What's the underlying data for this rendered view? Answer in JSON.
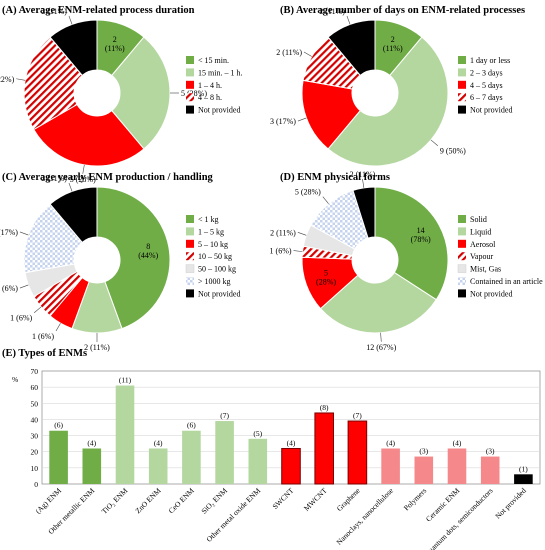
{
  "chart_data": [
    {
      "id": "A",
      "type": "pie",
      "title": "(A) Average ENM-related process duration",
      "categories": [
        "< 15 min.",
        "15 min. – 1 h.",
        "1 – 4 h.",
        "4 – 8 h.",
        "Not provided"
      ],
      "values": [
        2,
        5,
        5,
        4,
        2
      ],
      "labels": [
        "2 (11%)",
        "5 (28%)",
        "5 (28%)",
        "4 (22%)",
        "2 (11%)"
      ],
      "colors": [
        "#70ad47",
        "#b4d7a0",
        "#ff0000",
        "hatch-red",
        "#000000"
      ],
      "legend_position": "right"
    },
    {
      "id": "B",
      "type": "pie",
      "title": "(B) Average number of days on ENM-related processes",
      "categories": [
        "1 day or less",
        "2 – 3 days",
        "4 – 5 days",
        "6 – 7 days",
        "Not provided"
      ],
      "values": [
        2,
        9,
        3,
        2,
        2
      ],
      "labels": [
        "2 (11%)",
        "9 (50%)",
        "3 (17%)",
        "2 (11%)",
        "2 (11%)"
      ],
      "colors": [
        "#70ad47",
        "#b4d7a0",
        "#ff0000",
        "hatch-red",
        "#000000"
      ],
      "legend_position": "right"
    },
    {
      "id": "C",
      "type": "pie",
      "title": "(C) Average yearly ENM production / handling",
      "categories": [
        "< 1 kg",
        "1 – 5 kg",
        "5 – 10 kg",
        "10 – 50 kg",
        "50 – 100 kg",
        "> 1000 kg",
        "Not provided"
      ],
      "values": [
        8,
        2,
        1,
        1,
        1,
        3,
        2
      ],
      "labels": [
        "8 (44%)",
        "2 (11%)",
        "1 (6%)",
        "1 (6%)",
        "1 (6%)",
        "3 (17%)",
        "2 (11%)"
      ],
      "colors": [
        "#70ad47",
        "#b4d7a0",
        "#ff0000",
        "hatch-red",
        "#e6e6e6",
        "check-blue",
        "#000000"
      ],
      "legend_position": "right"
    },
    {
      "id": "D",
      "type": "pie",
      "title": "(D) ENM physical forms",
      "categories": [
        "Solid",
        "Liquid",
        "Aerosol",
        "Vapour",
        "Mist, Gas",
        "Contained in an article",
        "Not provided"
      ],
      "values": [
        14,
        12,
        5,
        1,
        2,
        5,
        2
      ],
      "labels": [
        "14 (78%)",
        "12 (67%)",
        "5 (28%)",
        "1 (6%)",
        "2 (11%)",
        "5 (28%)",
        "2 (11%)"
      ],
      "colors": [
        "#70ad47",
        "#b4d7a0",
        "#ff0000",
        "hatch-red",
        "#e6e6e6",
        "check-blue",
        "#000000"
      ],
      "legend_position": "right"
    },
    {
      "id": "E",
      "type": "bar",
      "title": "(E) Types of ENMs",
      "ylabel": "%",
      "ylim": [
        0,
        70
      ],
      "yticks": [
        0,
        10,
        20,
        30,
        40,
        50,
        60,
        70
      ],
      "categories": [
        "(Ag) ENM",
        "Other metallic ENM",
        "TiO₂ ENM",
        "ZnO ENM",
        "CeO ENM",
        "SiO₂ ENM",
        "Other metal oxide ENM",
        "SWCNT",
        "MWCNT",
        "Graphene",
        "Nanoclays, nanocellulose",
        "Polymers",
        "Ceramic ENM",
        "Quantum dots, semiconductors",
        "Not provided"
      ],
      "values": [
        33,
        22,
        61,
        22,
        33,
        39,
        28,
        22,
        44,
        39,
        22,
        17,
        22,
        17,
        6
      ],
      "counts": [
        "(6)",
        "(4)",
        "(11)",
        "(4)",
        "(6)",
        "(7)",
        "(5)",
        "(4)",
        "(8)",
        "(7)",
        "(4)",
        "(3)",
        "(4)",
        "(3)",
        "(1)"
      ],
      "colors": [
        "#70ad47",
        "#70ad47",
        "#b4d7a0",
        "#b4d7a0",
        "#b4d7a0",
        "#b4d7a0",
        "#b4d7a0",
        "#ff0000",
        "#ff0000",
        "#ff0000",
        "#f4888a",
        "#f4888a",
        "#f4888a",
        "#f4888a",
        "#000000"
      ]
    }
  ]
}
